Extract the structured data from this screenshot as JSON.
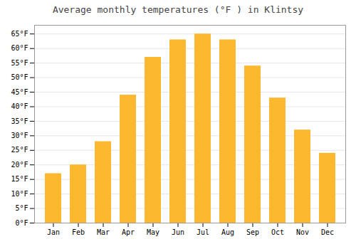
{
  "chart_data": {
    "type": "bar",
    "title": "Average monthly temperatures (°F ) in Klintsy",
    "categories": [
      "Jan",
      "Feb",
      "Mar",
      "Apr",
      "May",
      "Jun",
      "Jul",
      "Aug",
      "Sep",
      "Oct",
      "Nov",
      "Dec"
    ],
    "values": [
      17,
      20,
      28,
      44,
      57,
      63,
      65,
      63,
      54,
      43,
      32,
      24
    ],
    "color": "#FDB830",
    "ylim": [
      0,
      68
    ],
    "yticks": [
      {
        "value": 0,
        "label": "0°F"
      },
      {
        "value": 5,
        "label": "5°F"
      },
      {
        "value": 10,
        "label": "10°F"
      },
      {
        "value": 15,
        "label": "15°F"
      },
      {
        "value": 20,
        "label": "20°F"
      },
      {
        "value": 25,
        "label": "25°F"
      },
      {
        "value": 30,
        "label": "30°F"
      },
      {
        "value": 35,
        "label": "35°F"
      },
      {
        "value": 40,
        "label": "40°F"
      },
      {
        "value": 45,
        "label": "45°F"
      },
      {
        "value": 50,
        "label": "50°F"
      },
      {
        "value": 55,
        "label": "55°F"
      },
      {
        "value": 60,
        "label": "60°F"
      },
      {
        "value": 65,
        "label": "65°F"
      }
    ],
    "grid": true
  }
}
